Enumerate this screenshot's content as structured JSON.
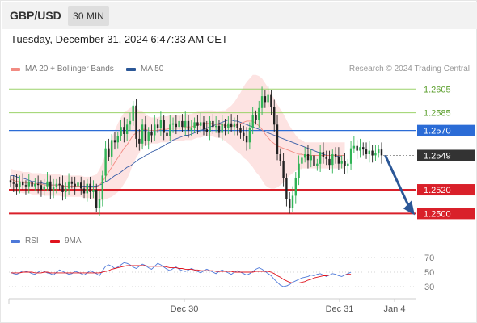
{
  "header": {
    "symbol": "GBP/USD",
    "timeframe": "30 MIN"
  },
  "timestamp": "Tuesday, December 31, 2024 6:47:33 AM CET",
  "legend": {
    "ma20": {
      "label": "MA 20 + Bollinger Bands",
      "color": "#f28b82"
    },
    "ma50": {
      "label": "MA 50",
      "color": "#2b5797"
    },
    "rsi": {
      "label": "RSI",
      "color": "#4e79d9"
    },
    "ma9": {
      "label": "9MA",
      "color": "#e0141e"
    }
  },
  "copyright": "Research © 2024 Trading Central",
  "chart_data": {
    "type": "candlestick",
    "ylim": [
      1.2488,
      1.2612
    ],
    "x_ticks": [
      "Dec 30",
      "Dec 31",
      "Jan 4"
    ],
    "levels": [
      {
        "label": "1.2605",
        "value": 1.2605,
        "kind": "target"
      },
      {
        "label": "1.2585",
        "value": 1.2585,
        "kind": "target"
      },
      {
        "label": "1.2570",
        "value": 1.257,
        "kind": "pivot"
      },
      {
        "label": "1.2549",
        "value": 1.2549,
        "kind": "last"
      },
      {
        "label": "1.2520",
        "value": 1.252,
        "kind": "support"
      },
      {
        "label": "1.2500",
        "value": 1.25,
        "kind": "support"
      }
    ],
    "close": [
      1.2526,
      1.2525,
      1.2522,
      1.2527,
      1.2524,
      1.2523,
      1.2527,
      1.2523,
      1.2525,
      1.2524,
      1.252,
      1.2523,
      1.2527,
      1.2519,
      1.2522,
      1.2525,
      1.2524,
      1.2518,
      1.2521,
      1.2527,
      1.2525,
      1.2523,
      1.2526,
      1.2521,
      1.2517,
      1.2525,
      1.2518,
      1.252,
      1.2505,
      1.2512,
      1.2532,
      1.2555,
      1.2548,
      1.2562,
      1.256,
      1.2565,
      1.2573,
      1.2567,
      1.2575,
      1.2578,
      1.2591,
      1.2563,
      1.2559,
      1.2575,
      1.2561,
      1.2569,
      1.2566,
      1.2575,
      1.2572,
      1.2579,
      1.2568,
      1.2565,
      1.2575,
      1.2576,
      1.2573,
      1.2578,
      1.2573,
      1.2578,
      1.257,
      1.2572,
      1.2577,
      1.2574,
      1.2577,
      1.2571,
      1.2569,
      1.2578,
      1.2573,
      1.2574,
      1.2568,
      1.2576,
      1.2572,
      1.2576,
      1.2573,
      1.2576,
      1.2572,
      1.2568,
      1.2565,
      1.256,
      1.2572,
      1.2583,
      1.2579,
      1.2589,
      1.2599,
      1.2594,
      1.26,
      1.259,
      1.2575,
      1.255,
      1.2544,
      1.253,
      1.2512,
      1.2505,
      1.2515,
      1.253,
      1.2542,
      1.2547,
      1.255,
      1.2545,
      1.2549,
      1.254,
      1.2542,
      1.2552,
      1.2548,
      1.2546,
      1.2541,
      1.255,
      1.2548,
      1.2542,
      1.2544,
      1.254,
      1.2542,
      1.2555,
      1.2557,
      1.2553,
      1.2556,
      1.2554,
      1.255,
      1.2553,
      1.2549,
      1.2551,
      1.2554,
      1.2549
    ],
    "ma20": [
      1.2529,
      1.2528,
      1.2527,
      1.2527,
      1.2526,
      1.2526,
      1.2526,
      1.2525,
      1.2525,
      1.2525,
      1.2525,
      1.2524,
      1.2524,
      1.2524,
      1.2524,
      1.2524,
      1.2524,
      1.2523,
      1.2523,
      1.2523,
      1.2523,
      1.2523,
      1.2523,
      1.2523,
      1.2522,
      1.2522,
      1.2522,
      1.2522,
      1.2522,
      1.2524,
      1.2527,
      1.2531,
      1.2535,
      1.2539,
      1.2543,
      1.2547,
      1.2551,
      1.2555,
      1.2558,
      1.2562,
      1.2566,
      1.2568,
      1.2569,
      1.2571,
      1.2571,
      1.257,
      1.257,
      1.257,
      1.257,
      1.2571,
      1.2571,
      1.2571,
      1.2572,
      1.2572,
      1.2572,
      1.2572,
      1.2572,
      1.2573,
      1.2573,
      1.2573,
      1.2574,
      1.2575,
      1.2575,
      1.2576,
      1.2576,
      1.2576,
      1.2576,
      1.2575,
      1.2575,
      1.2575,
      1.2574,
      1.2574,
      1.2574,
      1.2574,
      1.2575,
      1.2576,
      1.2577,
      1.2578,
      1.2578,
      1.2578,
      1.2576,
      1.2574,
      1.2571,
      1.2567,
      1.2564,
      1.2561,
      1.2559,
      1.2557,
      1.2556,
      1.2555,
      1.2554,
      1.2553,
      1.2552,
      1.2551,
      1.255,
      1.255,
      1.2549,
      1.2549,
      1.2549,
      1.2549,
      1.2549,
      1.2549,
      1.2549,
      1.2549,
      1.2549,
      1.2549,
      1.2549,
      1.2549,
      1.2549,
      1.2549
    ],
    "ma50": [
      1.2532,
      1.2532,
      1.2531,
      1.253,
      1.253,
      1.2529,
      1.2528,
      1.2527,
      1.2527,
      1.2526,
      1.2526,
      1.2525,
      1.2525,
      1.2524,
      1.2524,
      1.2524,
      1.2524,
      1.2523,
      1.2523,
      1.2523,
      1.2523,
      1.2523,
      1.2523,
      1.2523,
      1.2523,
      1.2523,
      1.2523,
      1.2523,
      1.2523,
      1.2524,
      1.2525,
      1.2527,
      1.2528,
      1.253,
      1.2532,
      1.2533,
      1.2535,
      1.2537,
      1.2539,
      1.254,
      1.2542,
      1.2544,
      1.2546,
      1.2547,
      1.2549,
      1.255,
      1.2552,
      1.2553,
      1.2554,
      1.2556,
      1.2557,
      1.2559,
      1.256,
      1.2562,
      1.2563,
      1.2564,
      1.2565,
      1.2566,
      1.2566,
      1.2567,
      1.2568,
      1.2569,
      1.257,
      1.2571,
      1.2572,
      1.2573,
      1.2574,
      1.2575,
      1.2576,
      1.2577,
      1.2578,
      1.2579,
      1.2579,
      1.2578,
      1.2578,
      1.2577,
      1.2576,
      1.2575,
      1.2574,
      1.2573,
      1.2572,
      1.2571,
      1.257,
      1.2569,
      1.2568,
      1.2567,
      1.2566,
      1.2565,
      1.2564,
      1.2563,
      1.2562,
      1.2561,
      1.256,
      1.2559,
      1.2558,
      1.2557,
      1.2556,
      1.2555,
      1.2554,
      1.2553,
      1.2552,
      1.2551,
      1.255,
      1.2549,
      1.2549,
      1.2549,
      1.2549,
      1.2548,
      1.2548
    ],
    "bb_width": [
      0.0009,
      0.0009,
      0.0009,
      0.0009,
      0.0009,
      0.0009,
      0.0009,
      0.0009,
      0.0009,
      0.0009,
      0.0009,
      0.0009,
      0.0009,
      0.0009,
      0.0009,
      0.0009,
      0.0009,
      0.0009,
      0.0009,
      0.0009,
      0.0009,
      0.0009,
      0.0009,
      0.0009,
      0.0009,
      0.0009,
      0.0009,
      0.001,
      0.0011,
      0.0013,
      0.0016,
      0.0019,
      0.0022,
      0.0025,
      0.0027,
      0.0029,
      0.003,
      0.003,
      0.0029,
      0.0027,
      0.0024,
      0.0021,
      0.0018,
      0.0015,
      0.0013,
      0.0012,
      0.0011,
      0.0011,
      0.0011,
      0.0011,
      0.0011,
      0.0011,
      0.0011,
      0.0011,
      0.0011,
      0.0011,
      0.0011,
      0.0011,
      0.0011,
      0.0011,
      0.0011,
      0.0011,
      0.0011,
      0.0011,
      0.0011,
      0.0011,
      0.0011,
      0.0011,
      0.0011,
      0.0012,
      0.0013,
      0.0015,
      0.0017,
      0.002,
      0.0023,
      0.0026,
      0.003,
      0.0033,
      0.0036,
      0.0039,
      0.0041,
      0.0042,
      0.0043,
      0.0043,
      0.0042,
      0.004,
      0.0038,
      0.0035,
      0.0032,
      0.0029,
      0.0025,
      0.0021,
      0.0018,
      0.0015,
      0.0013,
      0.0012,
      0.0011,
      0.0011,
      0.0011,
      0.0011,
      0.0011,
      0.0011,
      0.0011,
      0.0011,
      0.0011,
      0.0011,
      0.0011,
      0.0011,
      0.0011,
      0.0011
    ],
    "forecast": {
      "from": 1.2549,
      "to": 1.25
    },
    "rsi": {
      "ylim": [
        20,
        80
      ],
      "ticks": [
        "70",
        "50",
        "30"
      ],
      "rsi": [
        50,
        48,
        47,
        49,
        52,
        51,
        50,
        48,
        47,
        50,
        52,
        51,
        49,
        48,
        46,
        50,
        53,
        51,
        49,
        47,
        48,
        51,
        50,
        48,
        46,
        49,
        52,
        50,
        48,
        45,
        52,
        58,
        60,
        58,
        55,
        57,
        60,
        63,
        62,
        60,
        57,
        55,
        58,
        61,
        59,
        56,
        54,
        58,
        62,
        60,
        57,
        54,
        52,
        55,
        57,
        54,
        52,
        51,
        53,
        55,
        53,
        51,
        49,
        52,
        54,
        52,
        50,
        48,
        51,
        53,
        51,
        49,
        47,
        50,
        52,
        50,
        48,
        46,
        48,
        51,
        54,
        56,
        54,
        51,
        48,
        45,
        40,
        36,
        32,
        30,
        31,
        33,
        36,
        38,
        40,
        42,
        43,
        44,
        46,
        45,
        47,
        48,
        46,
        44,
        46,
        48,
        47,
        45,
        44,
        46,
        48,
        50
      ],
      "ma9": [
        49,
        49,
        49,
        49,
        50,
        50,
        50,
        50,
        49,
        49,
        49,
        50,
        50,
        49,
        49,
        49,
        49,
        49,
        49,
        49,
        49,
        49,
        49,
        49,
        49,
        49,
        49,
        49,
        49,
        49,
        50,
        51,
        52,
        54,
        55,
        56,
        57,
        58,
        59,
        59,
        59,
        59,
        59,
        59,
        59,
        58,
        58,
        58,
        58,
        58,
        58,
        57,
        56,
        56,
        56,
        55,
        55,
        54,
        54,
        54,
        53,
        53,
        52,
        52,
        52,
        52,
        52,
        51,
        51,
        51,
        51,
        51,
        51,
        50,
        50,
        50,
        50,
        50,
        50,
        50,
        51,
        51,
        51,
        51,
        51,
        50,
        48,
        45,
        43,
        40,
        38,
        36,
        35,
        35,
        35,
        36,
        37,
        39,
        40,
        42,
        43,
        44,
        45,
        45,
        46,
        46,
        46,
        46,
        46,
        46,
        47,
        47
      ]
    }
  }
}
